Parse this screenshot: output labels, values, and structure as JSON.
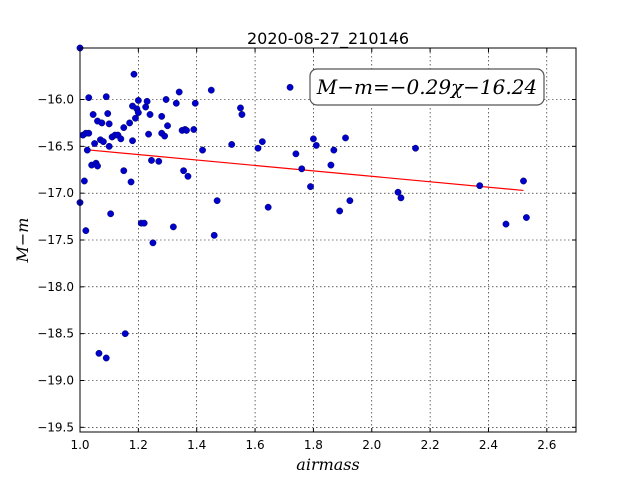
{
  "chart_data": {
    "type": "scatter",
    "title": "2020-08-27_210146",
    "xlabel": "airmass",
    "ylabel": "M−m",
    "xlim": [
      1.0,
      2.7
    ],
    "ylim": [
      -19.55,
      -15.45
    ],
    "xticks": [
      1.0,
      1.2,
      1.4,
      1.6,
      1.8,
      2.0,
      2.2,
      2.4,
      2.6
    ],
    "xtick_labels": [
      "1.0",
      "1.2",
      "1.4",
      "1.6",
      "1.8",
      "2.0",
      "2.2",
      "2.4",
      "2.6"
    ],
    "yticks": [
      -16.0,
      -16.5,
      -17.0,
      -17.5,
      -18.0,
      -18.5,
      -19.0,
      -19.5
    ],
    "ytick_labels": [
      "−16.0",
      "−16.5",
      "−17.0",
      "−17.5",
      "−18.0",
      "−18.5",
      "−19.0",
      "−19.5"
    ],
    "grid": true,
    "annotation": "M−m=−0.29χ−16.24",
    "fit": {
      "slope": -0.29,
      "intercept": -16.24,
      "x_range": [
        1.02,
        2.52
      ],
      "color": "#ff0000"
    },
    "marker_color": "#0000cc",
    "series": [
      {
        "points": [
          [
            1.0,
            -15.45
          ],
          [
            1.0,
            -17.1
          ],
          [
            1.01,
            -16.38
          ],
          [
            1.015,
            -16.87
          ],
          [
            1.02,
            -17.4
          ],
          [
            1.02,
            -16.36
          ],
          [
            1.025,
            -16.54
          ],
          [
            1.03,
            -16.36
          ],
          [
            1.03,
            -15.98
          ],
          [
            1.04,
            -16.7
          ],
          [
            1.045,
            -16.16
          ],
          [
            1.05,
            -16.47
          ],
          [
            1.055,
            -16.68
          ],
          [
            1.06,
            -16.71
          ],
          [
            1.06,
            -16.23
          ],
          [
            1.065,
            -18.71
          ],
          [
            1.07,
            -16.43
          ],
          [
            1.075,
            -16.25
          ],
          [
            1.08,
            -16.45
          ],
          [
            1.09,
            -15.97
          ],
          [
            1.09,
            -18.76
          ],
          [
            1.095,
            -16.15
          ],
          [
            1.1,
            -16.5
          ],
          [
            1.1,
            -16.26
          ],
          [
            1.105,
            -17.22
          ],
          [
            1.11,
            -16.4
          ],
          [
            1.12,
            -16.38
          ],
          [
            1.13,
            -16.38
          ],
          [
            1.14,
            -16.42
          ],
          [
            1.15,
            -16.76
          ],
          [
            1.15,
            -16.3
          ],
          [
            1.155,
            -18.5
          ],
          [
            1.17,
            -16.25
          ],
          [
            1.175,
            -16.88
          ],
          [
            1.18,
            -16.07
          ],
          [
            1.18,
            -16.44
          ],
          [
            1.185,
            -15.73
          ],
          [
            1.19,
            -16.2
          ],
          [
            1.195,
            -16.1
          ],
          [
            1.2,
            -16.01
          ],
          [
            1.2,
            -16.14
          ],
          [
            1.21,
            -17.32
          ],
          [
            1.22,
            -17.32
          ],
          [
            1.225,
            -16.08
          ],
          [
            1.23,
            -16.02
          ],
          [
            1.235,
            -16.37
          ],
          [
            1.24,
            -16.16
          ],
          [
            1.245,
            -16.65
          ],
          [
            1.25,
            -17.53
          ],
          [
            1.27,
            -16.66
          ],
          [
            1.28,
            -16.36
          ],
          [
            1.28,
            -16.18
          ],
          [
            1.29,
            -16.39
          ],
          [
            1.295,
            -16.0
          ],
          [
            1.3,
            -16.28
          ],
          [
            1.32,
            -17.36
          ],
          [
            1.33,
            -16.04
          ],
          [
            1.34,
            -15.92
          ],
          [
            1.35,
            -16.33
          ],
          [
            1.355,
            -16.76
          ],
          [
            1.36,
            -16.32
          ],
          [
            1.365,
            -16.33
          ],
          [
            1.37,
            -16.82
          ],
          [
            1.39,
            -16.32
          ],
          [
            1.395,
            -16.04
          ],
          [
            1.42,
            -16.54
          ],
          [
            1.45,
            -15.9
          ],
          [
            1.46,
            -17.45
          ],
          [
            1.47,
            -17.08
          ],
          [
            1.52,
            -16.48
          ],
          [
            1.55,
            -16.09
          ],
          [
            1.555,
            -16.16
          ],
          [
            1.61,
            -16.52
          ],
          [
            1.625,
            -16.45
          ],
          [
            1.645,
            -17.15
          ],
          [
            1.72,
            -15.87
          ],
          [
            1.74,
            -16.58
          ],
          [
            1.76,
            -16.74
          ],
          [
            1.79,
            -16.93
          ],
          [
            1.8,
            -16.42
          ],
          [
            1.81,
            -16.49
          ],
          [
            1.86,
            -16.7
          ],
          [
            1.87,
            -16.54
          ],
          [
            1.89,
            -17.19
          ],
          [
            1.91,
            -16.41
          ],
          [
            1.925,
            -17.08
          ],
          [
            2.09,
            -16.99
          ],
          [
            2.1,
            -17.05
          ],
          [
            2.15,
            -16.52
          ],
          [
            2.37,
            -16.92
          ],
          [
            2.46,
            -17.33
          ],
          [
            2.52,
            -16.87
          ],
          [
            2.53,
            -17.26
          ]
        ]
      }
    ]
  }
}
